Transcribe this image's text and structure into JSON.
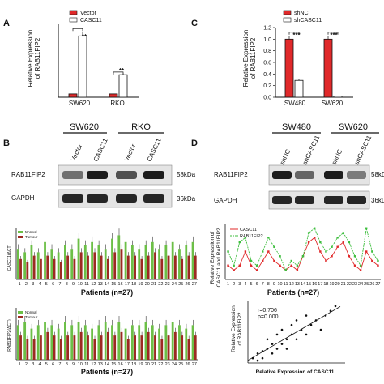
{
  "panelA": {
    "letter": "A",
    "legend": [
      "Vector",
      "CASC11"
    ],
    "ylabel": [
      "Relative Expression",
      "of RAB11FIP2"
    ],
    "categories": [
      "SW620",
      "RKO"
    ],
    "sig": [
      "**",
      "**"
    ],
    "colors": {
      "control": "#e0292a",
      "treatment": "#ffffff"
    }
  },
  "panelC": {
    "letter": "C",
    "legend": [
      "shNC",
      "shCASC11"
    ],
    "ylabel": [
      "Relative Expression",
      "of RAB11FIP2"
    ],
    "categories": [
      "SW480",
      "SW620"
    ],
    "sig": [
      "***",
      "***"
    ],
    "yticks": [
      "0.0",
      "0.2",
      "0.4",
      "0.6",
      "0.8",
      "1.0",
      "1.2"
    ]
  },
  "panelB": {
    "letter": "B",
    "groups": [
      "SW620",
      "RKO"
    ],
    "lanes": [
      "Vector",
      "CASC11",
      "Vector",
      "CASC11"
    ],
    "rows": [
      "RAB11FIP2",
      "GAPDH"
    ],
    "sizes": [
      "58kDa",
      "36kDa"
    ]
  },
  "panelD": {
    "letter": "D",
    "groups": [
      "SW480",
      "SW620"
    ],
    "lanes": [
      "shNC",
      "shCASC11",
      "shNC",
      "shCASC11"
    ],
    "rows": [
      "RAB11FIP2",
      "GAPDH"
    ],
    "sizes": [
      "58kDa",
      "36kDa"
    ]
  },
  "bottom": {
    "xlabel": "Patients (n=27)",
    "legend": [
      "Normal",
      "Tumour"
    ],
    "ylabel1": "CASC11(ΔCT)",
    "ylabel2": "RAB11FIP2(ΔCT)",
    "lineLegend": [
      "CASC11",
      "RAB11FIP2"
    ],
    "lineYlabel": [
      "Relative Expression of",
      "CASC11 and RAB11FIP2"
    ],
    "scatterAnno": [
      "r=0.706",
      "p=0.000"
    ],
    "scatterX": "Relative Expression of CASC11",
    "scatterY": [
      "Relative Expression",
      "of RAB11FIP2"
    ]
  },
  "chart_data": [
    {
      "type": "bar",
      "panel": "A",
      "categories": [
        "SW620",
        "RKO"
      ],
      "series": [
        {
          "name": "Vector",
          "values": [
            1,
            1
          ]
        },
        {
          "name": "CASC11",
          "values": [
            18.5,
            6.8
          ]
        }
      ],
      "ylabel": "Relative Expression of RAB11FIP2",
      "ylim": [
        0,
        22
      ]
    },
    {
      "type": "bar",
      "panel": "C",
      "categories": [
        "SW480",
        "SW620"
      ],
      "series": [
        {
          "name": "shNC",
          "values": [
            1.0,
            1.0
          ]
        },
        {
          "name": "shCASC11",
          "values": [
            0.29,
            0.02
          ]
        }
      ],
      "ylabel": "Relative Expression of RAB11FIP2",
      "ylim": [
        0,
        1.2
      ]
    },
    {
      "type": "bar",
      "panel": "bottom-left-1",
      "x": [
        1,
        2,
        3,
        4,
        5,
        6,
        7,
        8,
        9,
        10,
        11,
        12,
        13,
        14,
        15,
        16,
        17,
        18,
        19,
        20,
        21,
        22,
        23,
        24,
        25,
        26,
        27
      ],
      "series": [
        {
          "name": "Normal",
          "values": [
            9,
            8,
            10,
            8,
            11,
            9,
            8,
            10,
            9,
            12,
            10,
            11,
            10,
            9,
            12,
            13,
            11,
            10,
            9,
            10,
            11,
            9,
            10,
            11,
            9,
            10,
            11
          ]
        },
        {
          "name": "Tumour",
          "values": [
            6,
            5,
            7,
            6,
            7,
            6,
            5,
            7,
            6,
            8,
            7,
            8,
            7,
            6,
            8,
            9,
            7,
            7,
            6,
            7,
            8,
            6,
            7,
            7,
            6,
            7,
            7
          ]
        }
      ],
      "xlabel": "Patients (n=27)",
      "ylabel": "CASC11(ΔCT)"
    },
    {
      "type": "bar",
      "panel": "bottom-left-2",
      "x": [
        1,
        2,
        3,
        4,
        5,
        6,
        7,
        8,
        9,
        10,
        11,
        12,
        13,
        14,
        15,
        16,
        17,
        18,
        19,
        20,
        21,
        22,
        23,
        24,
        25,
        26,
        27
      ],
      "series": [
        {
          "name": "Normal",
          "values": [
            10,
            11,
            9,
            10,
            11,
            10,
            9,
            11,
            10,
            11,
            10,
            9,
            10,
            11,
            10,
            11,
            9,
            10,
            10,
            11,
            10,
            9,
            10,
            11,
            10,
            9,
            10
          ]
        },
        {
          "name": "Tumour",
          "values": [
            7,
            6,
            6,
            7,
            8,
            7,
            6,
            7,
            7,
            8,
            7,
            6,
            7,
            8,
            7,
            8,
            6,
            7,
            7,
            8,
            7,
            6,
            7,
            8,
            7,
            6,
            7
          ]
        }
      ],
      "xlabel": "Patients (n=27)",
      "ylabel": "RAB11FIP2(ΔCT)"
    },
    {
      "type": "line",
      "panel": "bottom-right-1",
      "x": [
        1,
        2,
        3,
        4,
        5,
        6,
        7,
        8,
        9,
        10,
        11,
        12,
        13,
        14,
        15,
        16,
        17,
        18,
        19,
        20,
        21,
        22,
        23,
        24,
        25,
        26,
        27
      ],
      "series": [
        {
          "name": "CASC11",
          "values": [
            3,
            2,
            3,
            6,
            3,
            2,
            4,
            6,
            4,
            3,
            2,
            3,
            2,
            5,
            8,
            9,
            6,
            4,
            5,
            7,
            8,
            5,
            3,
            2,
            6,
            4,
            3
          ]
        },
        {
          "name": "RAB11FIP2",
          "values": [
            6,
            3,
            8,
            9,
            4,
            3,
            6,
            9,
            7,
            5,
            2,
            4,
            3,
            5,
            10,
            11,
            8,
            6,
            7,
            9,
            10,
            8,
            5,
            3,
            11,
            6,
            4
          ]
        }
      ],
      "xlabel": "Patients (n=27)",
      "ylabel": "Relative Expression of CASC11 and RAB11FIP2"
    },
    {
      "type": "scatter",
      "panel": "bottom-right-2",
      "x": [
        1,
        2,
        3,
        4,
        4,
        5,
        5,
        6,
        6,
        7,
        7,
        8,
        8,
        9,
        9,
        10,
        10,
        11,
        12,
        12,
        13,
        14,
        15,
        16,
        17,
        18,
        2,
        3
      ],
      "y": [
        1,
        2,
        1,
        3,
        5,
        2,
        4,
        3,
        6,
        4,
        7,
        5,
        3,
        6,
        8,
        5,
        9,
        7,
        6,
        10,
        8,
        9,
        7,
        10,
        11,
        12,
        0.5,
        2.5
      ],
      "xlabel": "Relative Expression of CASC11",
      "ylabel": "Relative Expression of RAB11FIP2",
      "annotation": [
        "r=0.706",
        "p=0.000"
      ]
    }
  ]
}
